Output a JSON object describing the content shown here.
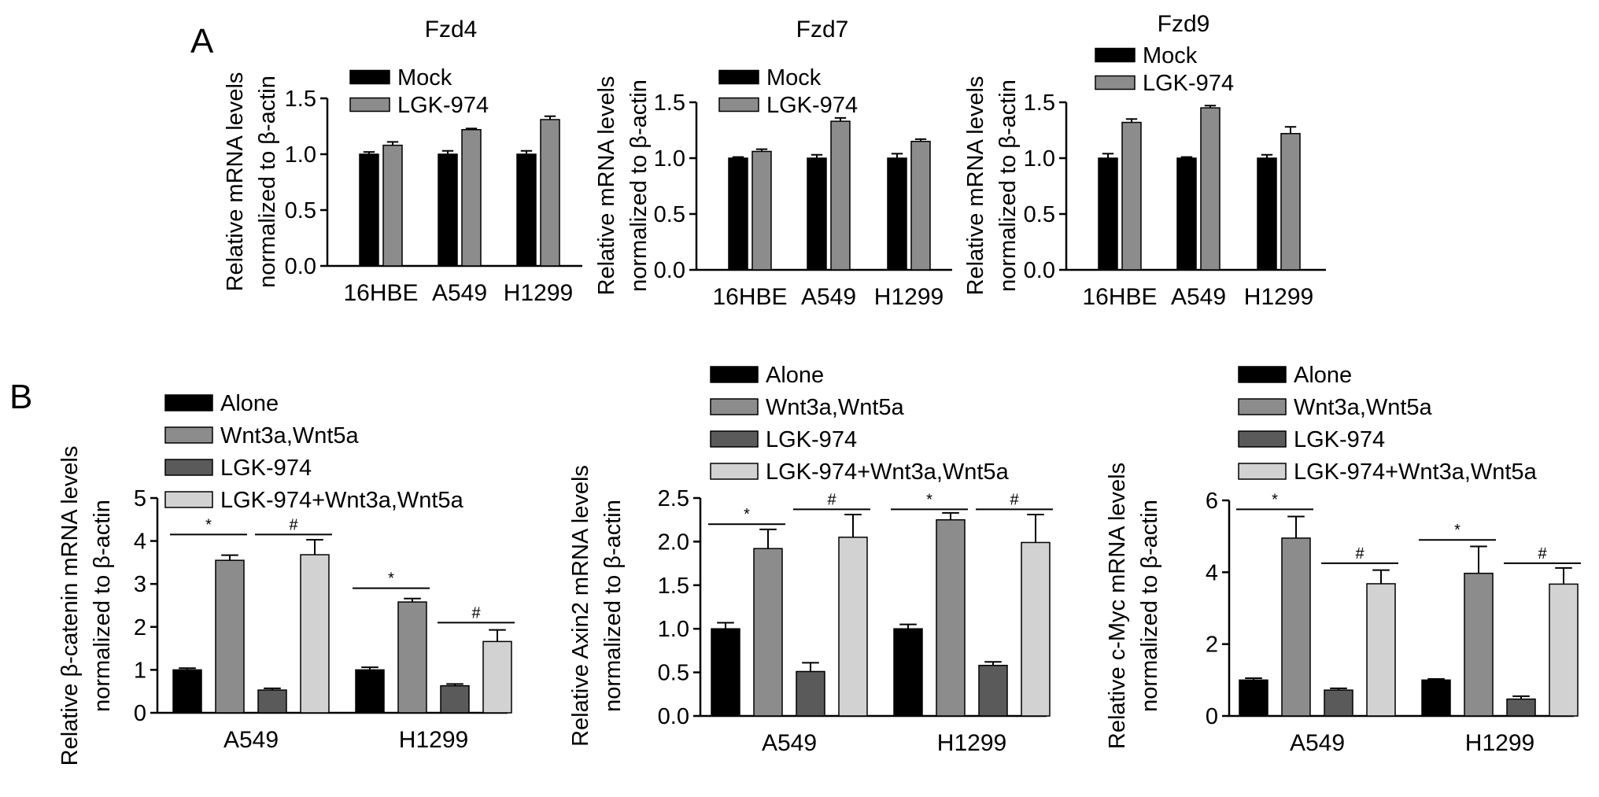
{
  "panels": [
    {
      "letter": "A"
    },
    {
      "letter": "B"
    }
  ],
  "colors": {
    "Mock": "#000000",
    "LGK-974": "#8c8c8c",
    "Alone": "#000000",
    "Wnt3a,Wnt5a": "#8c8c8c",
    "LGK-974 (B)": "#5a5a5a",
    "LGK-974+Wnt3a,Wnt5a": "#d2d2d2"
  },
  "chart_data": [
    {
      "type": "bar",
      "panel": "A",
      "title": "Fzd4",
      "ylabel": [
        "Relative mRNA levels",
        "normalized to β-actin"
      ],
      "categories": [
        "16HBE",
        "A549",
        "H1299"
      ],
      "yticks": [
        "0.0",
        "0.5",
        "1.0",
        "1.5"
      ],
      "ylim": [
        0,
        1.5
      ],
      "series": [
        {
          "name": "Mock",
          "values": [
            1.0,
            1.0,
            1.0
          ],
          "errors": [
            0.02,
            0.03,
            0.03
          ]
        },
        {
          "name": "LGK-974",
          "values": [
            1.08,
            1.22,
            1.31
          ],
          "errors": [
            0.03,
            0.01,
            0.03
          ]
        }
      ],
      "annotations": []
    },
    {
      "type": "bar",
      "panel": "A",
      "title": "Fzd7",
      "ylabel": [
        "Relative mRNA levels",
        "normalized to β-actin"
      ],
      "categories": [
        "16HBE",
        "A549",
        "H1299"
      ],
      "yticks": [
        "0.0",
        "0.5",
        "1.0",
        "1.5"
      ],
      "ylim": [
        0,
        1.5
      ],
      "series": [
        {
          "name": "Mock",
          "values": [
            1.0,
            1.0,
            1.0
          ],
          "errors": [
            0.01,
            0.03,
            0.04
          ]
        },
        {
          "name": "LGK-974",
          "values": [
            1.06,
            1.33,
            1.15
          ],
          "errors": [
            0.02,
            0.03,
            0.02
          ]
        }
      ],
      "annotations": []
    },
    {
      "type": "bar",
      "panel": "A",
      "title": "Fzd9",
      "ylabel": [
        "Relative mRNA levels",
        "normalized to β-actin"
      ],
      "categories": [
        "16HBE",
        "A549",
        "H1299"
      ],
      "yticks": [
        "0.0",
        "0.5",
        "1.0",
        "1.5"
      ],
      "ylim": [
        0,
        1.5
      ],
      "series": [
        {
          "name": "Mock",
          "values": [
            1.0,
            1.0,
            1.0
          ],
          "errors": [
            0.04,
            0.01,
            0.03
          ]
        },
        {
          "name": "LGK-974",
          "values": [
            1.32,
            1.45,
            1.22
          ],
          "errors": [
            0.03,
            0.02,
            0.06
          ]
        }
      ],
      "annotations": []
    },
    {
      "type": "bar",
      "panel": "B",
      "title": "",
      "ylabel": [
        "Relative β-catenin mRNA levels",
        "normalized to β-actin"
      ],
      "categories": [
        "A549",
        "H1299"
      ],
      "yticks": [
        "0",
        "1",
        "2",
        "3",
        "4",
        "5"
      ],
      "ylim": [
        0,
        5
      ],
      "series": [
        {
          "name": "Alone",
          "values": [
            1.0,
            1.0
          ],
          "errors": [
            0.04,
            0.06
          ]
        },
        {
          "name": "Wnt3a,Wnt5a",
          "values": [
            3.55,
            2.58
          ],
          "errors": [
            0.12,
            0.08
          ]
        },
        {
          "name": "LGK-974",
          "values": [
            0.53,
            0.63
          ],
          "errors": [
            0.04,
            0.04
          ]
        },
        {
          "name": "LGK-974+Wnt3a,Wnt5a",
          "values": [
            3.68,
            1.66
          ],
          "errors": [
            0.35,
            0.27
          ]
        }
      ],
      "annotations": [
        {
          "symbol": "*",
          "group": 0,
          "from": 0,
          "to": 1,
          "y": 4.15
        },
        {
          "symbol": "#",
          "group": 0,
          "from": 2,
          "to": 3,
          "y": 4.15
        },
        {
          "symbol": "*",
          "group": 1,
          "from": 0,
          "to": 1,
          "y": 2.9
        },
        {
          "symbol": "#",
          "group": 1,
          "from": 2,
          "to": 3,
          "y": 2.1
        }
      ]
    },
    {
      "type": "bar",
      "panel": "B",
      "title": "",
      "ylabel": [
        "Relative Axin2 mRNA levels",
        "normalized to β-actin"
      ],
      "categories": [
        "A549",
        "H1299"
      ],
      "yticks": [
        "0.0",
        "0.5",
        "1.0",
        "1.5",
        "2.0",
        "2.5"
      ],
      "ylim": [
        0,
        2.5
      ],
      "series": [
        {
          "name": "Alone",
          "values": [
            1.0,
            1.0
          ],
          "errors": [
            0.07,
            0.05
          ]
        },
        {
          "name": "Wnt3a,Wnt5a",
          "values": [
            1.92,
            2.25
          ],
          "errors": [
            0.22,
            0.08
          ]
        },
        {
          "name": "LGK-974",
          "values": [
            0.51,
            0.58
          ],
          "errors": [
            0.1,
            0.04
          ]
        },
        {
          "name": "LGK-974+Wnt3a,Wnt5a",
          "values": [
            2.05,
            1.99
          ],
          "errors": [
            0.26,
            0.32
          ]
        }
      ],
      "annotations": [
        {
          "symbol": "*",
          "group": 0,
          "from": 0,
          "to": 1,
          "y": 2.2
        },
        {
          "symbol": "#",
          "group": 0,
          "from": 2,
          "to": 3,
          "y": 2.37
        },
        {
          "symbol": "*",
          "group": 1,
          "from": 0,
          "to": 1,
          "y": 2.37
        },
        {
          "symbol": "#",
          "group": 1,
          "from": 2,
          "to": 3,
          "y": 2.37
        }
      ]
    },
    {
      "type": "bar",
      "panel": "B",
      "title": "",
      "ylabel": [
        "Relative c-Myc mRNA levels",
        "normalized to β-actin"
      ],
      "categories": [
        "A549",
        "H1299"
      ],
      "yticks": [
        "0",
        "2",
        "4",
        "6"
      ],
      "ylim": [
        0,
        6
      ],
      "series": [
        {
          "name": "Alone",
          "values": [
            1.0,
            1.0
          ],
          "errors": [
            0.05,
            0.03
          ]
        },
        {
          "name": "Wnt3a,Wnt5a",
          "values": [
            4.95,
            3.97
          ],
          "errors": [
            0.6,
            0.75
          ]
        },
        {
          "name": "LGK-974",
          "values": [
            0.72,
            0.47
          ],
          "errors": [
            0.05,
            0.08
          ]
        },
        {
          "name": "LGK-974+Wnt3a,Wnt5a",
          "values": [
            3.68,
            3.67
          ],
          "errors": [
            0.38,
            0.45
          ]
        }
      ],
      "annotations": [
        {
          "symbol": "*",
          "group": 0,
          "from": 0,
          "to": 1,
          "y": 5.75
        },
        {
          "symbol": "#",
          "group": 0,
          "from": 2,
          "to": 3,
          "y": 4.25
        },
        {
          "symbol": "*",
          "group": 1,
          "from": 0,
          "to": 1,
          "y": 4.9
        },
        {
          "symbol": "#",
          "group": 1,
          "from": 2,
          "to": 3,
          "y": 4.25
        }
      ]
    }
  ]
}
